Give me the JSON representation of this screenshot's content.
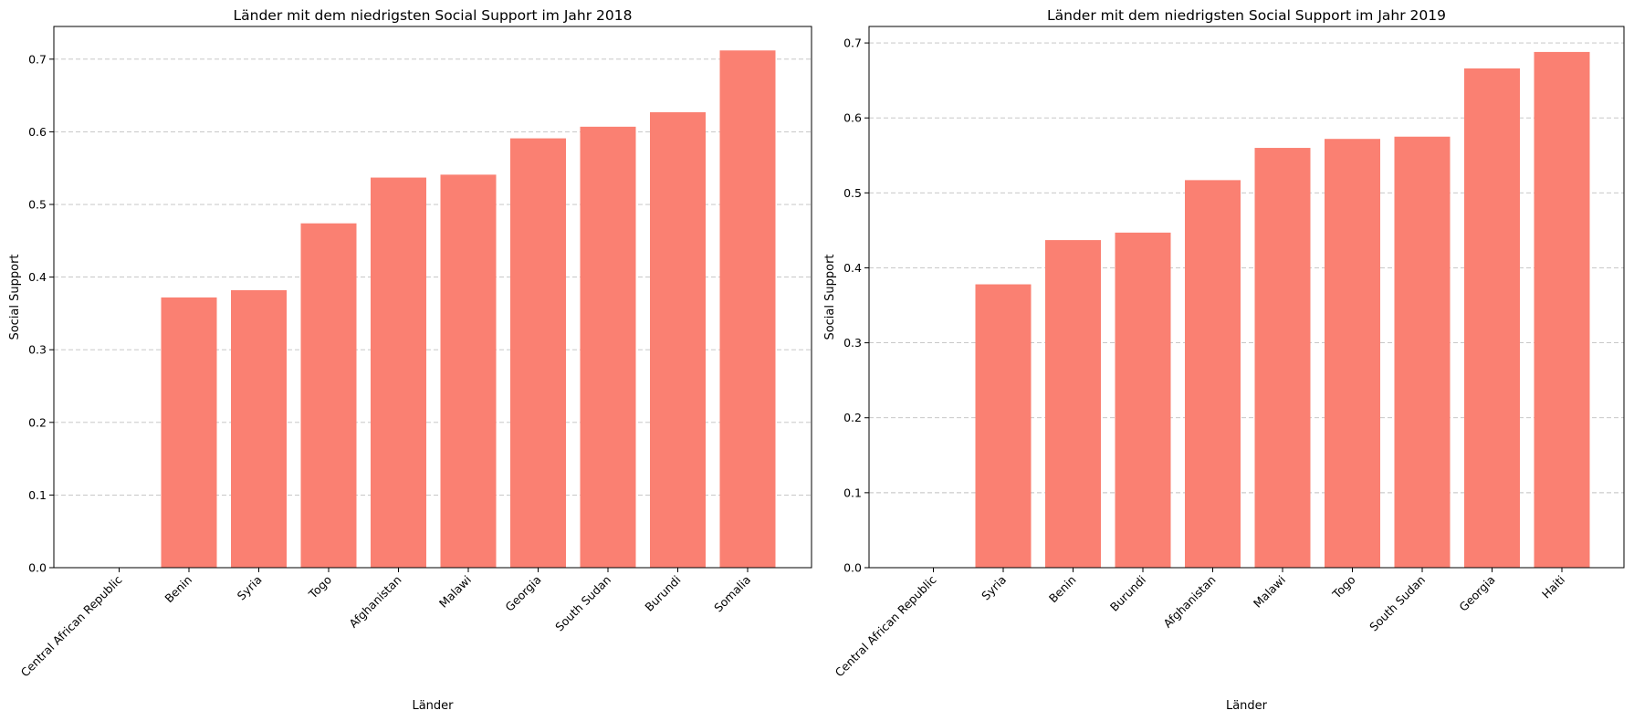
{
  "chart_data": [
    {
      "type": "bar",
      "title": "Länder mit dem niedrigsten Social Support im Jahr 2018",
      "xlabel": "Länder",
      "ylabel": "Social Support",
      "ylim": [
        0,
        0.745
      ],
      "yticks": [
        "0.0",
        "0.1",
        "0.2",
        "0.3",
        "0.4",
        "0.5",
        "0.6",
        "0.7"
      ],
      "grid": "y, dashed",
      "bar_color": "#fa8072",
      "categories": [
        "Central African Republic",
        "Benin",
        "Syria",
        "Togo",
        "Afghanistan",
        "Malawi",
        "Georgia",
        "South Sudan",
        "Burundi",
        "Somalia"
      ],
      "values": [
        0.0,
        0.372,
        0.382,
        0.474,
        0.537,
        0.541,
        0.591,
        0.607,
        0.627,
        0.712
      ]
    },
    {
      "type": "bar",
      "title": "Länder mit dem niedrigsten Social Support im Jahr 2019",
      "xlabel": "Länder",
      "ylabel": "Social Support",
      "ylim": [
        0,
        0.722
      ],
      "yticks": [
        "0.0",
        "0.1",
        "0.2",
        "0.3",
        "0.4",
        "0.5",
        "0.6",
        "0.7"
      ],
      "grid": "y, dashed",
      "bar_color": "#fa8072",
      "categories": [
        "Central African Republic",
        "Syria",
        "Benin",
        "Burundi",
        "Afghanistan",
        "Malawi",
        "Togo",
        "South Sudan",
        "Georgia",
        "Haiti"
      ],
      "values": [
        0.0,
        0.378,
        0.437,
        0.447,
        0.517,
        0.56,
        0.572,
        0.575,
        0.666,
        0.688
      ]
    }
  ]
}
